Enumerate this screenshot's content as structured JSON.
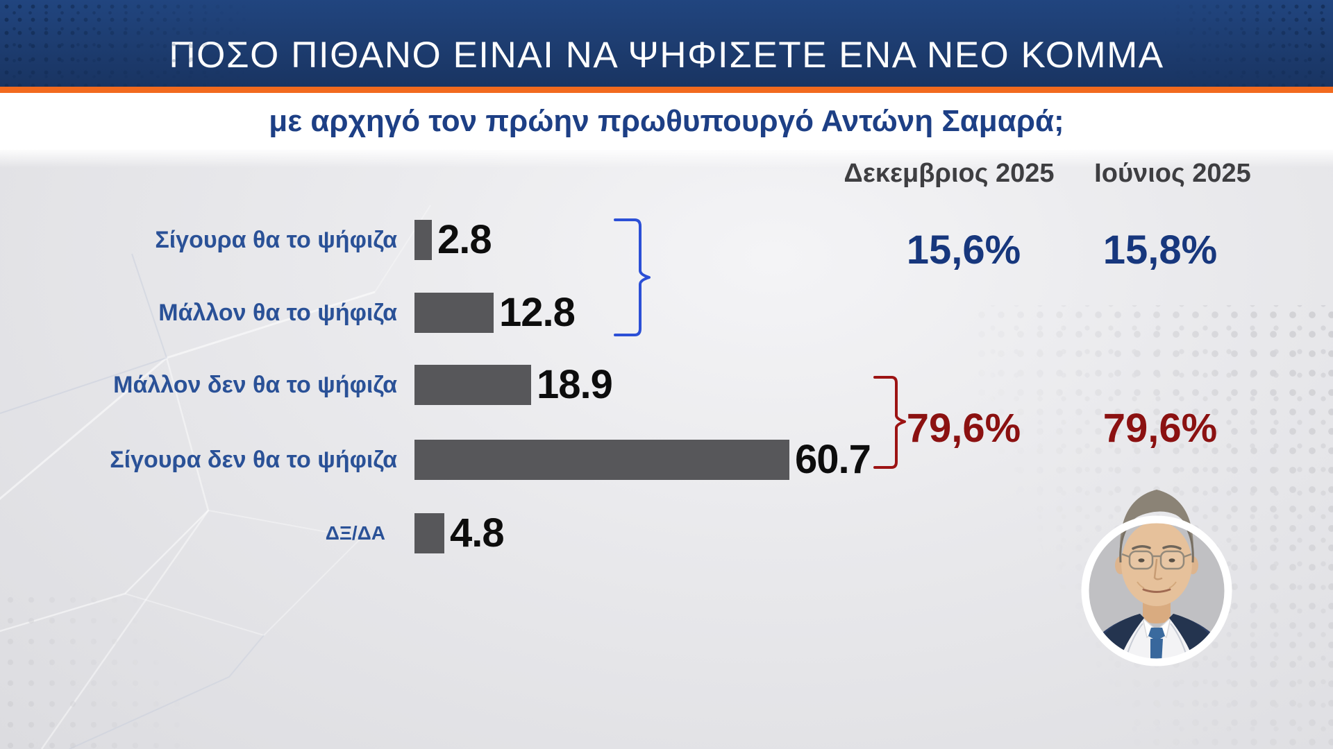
{
  "header": {
    "title": "ΠΟΣΟ ΠΙΘΑΝΟ ΕΙΝΑΙ ΝΑ ΨΗΦΙΣΕΤΕ ΕΝΑ ΝΕΟ ΚΟΜΜΑ",
    "bg_color": "#1d3c6f",
    "accent_line_color": "#f26a1e",
    "title_color": "#ffffff"
  },
  "subtitle": {
    "text": "με αρχηγό τον πρώην πρωθυπουργό Αντώνη Σαμαρά;",
    "color": "#1d3f85"
  },
  "columns": {
    "dec": "Δεκεμβριος 2025",
    "jun": "Ιούνιος 2025",
    "color": "#3e3e41"
  },
  "chart_data": {
    "type": "bar",
    "orientation": "horizontal",
    "title": "ΠΟΣΟ ΠΙΘΑΝΟ ΕΙΝΑΙ ΝΑ ΨΗΦΙΣΕΤΕ ΕΝΑ ΝΕΟ ΚΟΜΜΑ",
    "subtitle": "με αρχηγό τον πρώην πρωθυπουργό Αντώνη Σαμαρά;",
    "categories": [
      "Σίγουρα θα το ψήφιζα",
      "Μάλλον θα το ψήφιζα",
      "Μάλλον δεν θα το ψήφιζα",
      "Σίγουρα δεν θα το ψήφιζα",
      "ΔΞ/ΔΑ"
    ],
    "values": [
      2.8,
      12.8,
      18.9,
      60.7,
      4.8
    ],
    "value_labels": [
      "2.8",
      "12.8",
      "18.9",
      "60.7",
      "4.8"
    ],
    "xlim": [
      0,
      65
    ],
    "grid": false,
    "bar_color": "#57575a",
    "label_color": "#2a5197",
    "value_color": "#0d0d0d",
    "comparison_columns": [
      "Δεκεμβριος 2025",
      "Ιούνιος 2025"
    ],
    "groups": [
      {
        "rows": [
          "Σίγουρα θα το ψήφιζα",
          "Μάλλον θα το ψήφιζα"
        ],
        "bracket_color": "#2b4fd6",
        "value_color": "#17377d",
        "dec_2025": "15,6%",
        "jun_2025": "15,8%"
      },
      {
        "rows": [
          "Μάλλον δεν θα το ψήφιζα",
          "Σίγουρα δεν θα το ψήφιζα"
        ],
        "bracket_color": "#9c1313",
        "value_color": "#8b1111",
        "dec_2025": "79,6%",
        "jun_2025": "79,6%"
      }
    ]
  },
  "portrait": {
    "person": "Αντώνης Σαμαράς"
  }
}
